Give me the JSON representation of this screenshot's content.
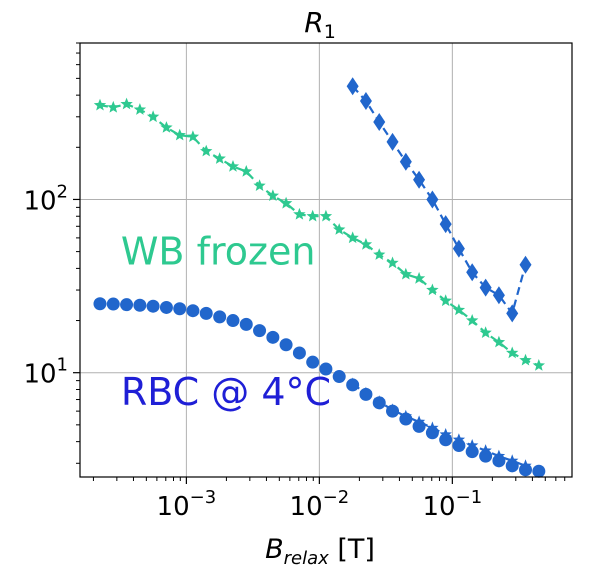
{
  "chart_data": {
    "type": "scatter",
    "title": "R",
    "title_subscript": "1",
    "xlabel": "B",
    "xlabel_subscript": "relax",
    "xlabel_unit": " [T]",
    "ylabel": "",
    "x_scale": "log",
    "y_scale": "log",
    "xlim": [
      0.0001585,
      0.794
    ],
    "ylim": [
      2.5,
      800
    ],
    "grid": true,
    "x_ticks": [
      {
        "value": 0.001,
        "base": "10",
        "exp": "−3"
      },
      {
        "value": 0.01,
        "base": "10",
        "exp": "−2"
      },
      {
        "value": 0.1,
        "base": "10",
        "exp": "−1"
      }
    ],
    "y_ticks": [
      {
        "value": 10,
        "base": "10",
        "exp": "1"
      },
      {
        "value": 100,
        "base": "10",
        "exp": "2"
      }
    ],
    "series": [
      {
        "color": "#2ec990",
        "marker": "star",
        "line": "dashed",
        "x": [
          0.000224,
          0.000282,
          0.000355,
          0.000447,
          0.000562,
          0.000708,
          0.000891,
          0.00112,
          0.00141,
          0.00178,
          0.00224,
          0.00282,
          0.00355,
          0.00447,
          0.00562,
          0.00708,
          0.00891,
          0.0112,
          0.0141,
          0.0178,
          0.0224,
          0.0282,
          0.0355,
          0.0447,
          0.0562,
          0.0708,
          0.0891,
          0.112,
          0.141,
          0.178,
          0.224,
          0.282,
          0.355,
          0.447
        ],
        "y": [
          350,
          340,
          355,
          330,
          300,
          260,
          235,
          230,
          190,
          172,
          155,
          145,
          120,
          105,
          95,
          82,
          80,
          80,
          67,
          60,
          55,
          48,
          43,
          37,
          35,
          30,
          26,
          23,
          20,
          17,
          15,
          13,
          11.8,
          11
        ]
      },
      {
        "color": "#2166cc",
        "marker": "diamond",
        "line": "dashed",
        "x": [
          0.0178,
          0.0224,
          0.0282,
          0.0355,
          0.0447,
          0.0562,
          0.0708,
          0.0891,
          0.112,
          0.141,
          0.178,
          0.224,
          0.282,
          0.355
        ],
        "y": [
          450,
          370,
          280,
          215,
          165,
          130,
          100,
          72,
          52,
          38,
          31,
          28,
          22,
          42
        ]
      },
      {
        "color": "#2166cc",
        "marker": "circle",
        "line": "none",
        "x": [
          0.000224,
          0.000282,
          0.000355,
          0.000447,
          0.000562,
          0.000708,
          0.000891,
          0.00112,
          0.00141,
          0.00178,
          0.00224,
          0.00282,
          0.00355,
          0.00447,
          0.00562,
          0.00708,
          0.00891,
          0.0112,
          0.0141,
          0.0178,
          0.0224,
          0.0282,
          0.0355,
          0.0447,
          0.0562,
          0.0708,
          0.0891,
          0.112,
          0.141,
          0.178,
          0.224,
          0.282,
          0.355,
          0.447
        ],
        "y": [
          25,
          24.9,
          24.7,
          24.5,
          24.2,
          23.8,
          23.4,
          22.8,
          22,
          21,
          20,
          19,
          17.5,
          16,
          14.5,
          13,
          11.5,
          10.5,
          9.5,
          8.5,
          7.5,
          6.7,
          6,
          5.4,
          4.9,
          4.5,
          4.1,
          3.8,
          3.5,
          3.3,
          3.1,
          2.9,
          2.75,
          2.7
        ]
      },
      {
        "color": "#2166cc",
        "marker": "star",
        "line": "dashed",
        "x": [
          0.0178,
          0.0224,
          0.0282,
          0.0355,
          0.0447,
          0.0562,
          0.0708,
          0.0891,
          0.112,
          0.141,
          0.178,
          0.224,
          0.282,
          0.355
        ],
        "y": [
          8.6,
          7.6,
          6.8,
          6.1,
          5.6,
          5.2,
          4.8,
          4.4,
          4.1,
          3.8,
          3.55,
          3.3,
          3.1,
          2.9
        ]
      }
    ],
    "annotations": [
      {
        "text": "WB frozen",
        "color": "#2ec990",
        "x": 0.00028,
        "y": 42
      },
      {
        "text": "RBC @ 4°C",
        "color": "#1f1fd6",
        "x": 0.00028,
        "y": 6.5
      }
    ]
  }
}
